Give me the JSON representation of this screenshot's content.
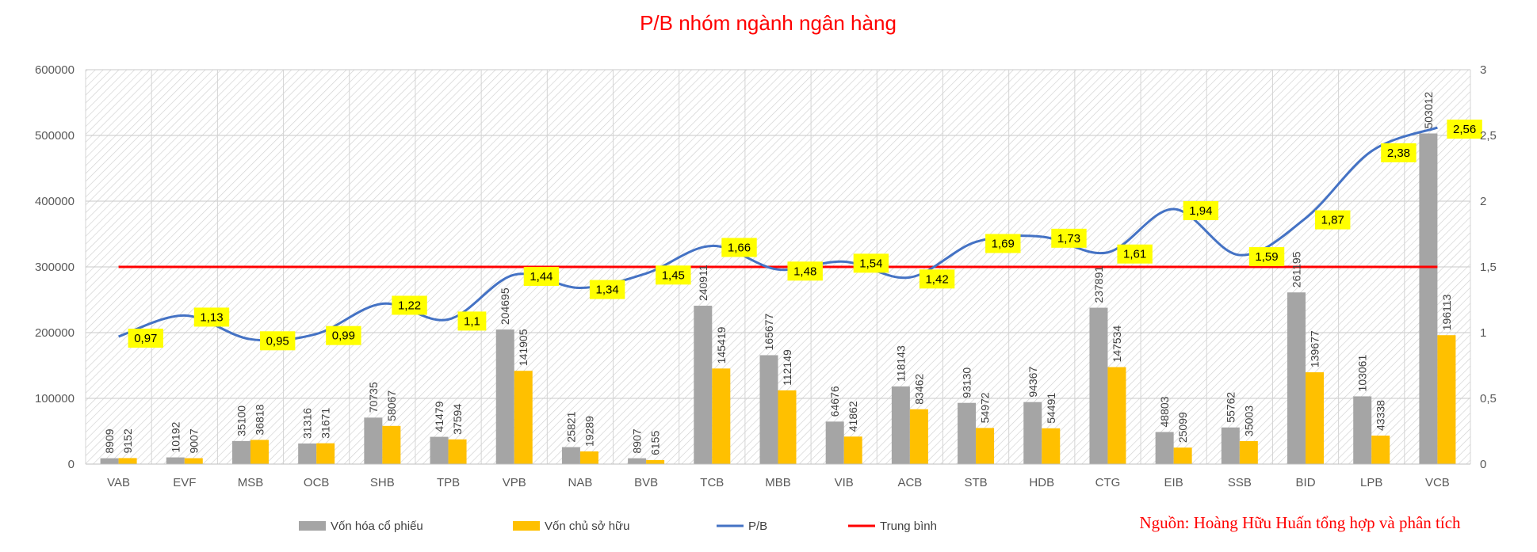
{
  "chart_data": {
    "type": "bar",
    "title": "P/B nhóm ngành ngân hàng",
    "source_note": "Nguồn: Hoàng Hữu Huấn tổng hợp và phân tích",
    "categories": [
      "VAB",
      "EVF",
      "MSB",
      "OCB",
      "SHB",
      "TPB",
      "VPB",
      "NAB",
      "BVB",
      "TCB",
      "MBB",
      "VIB",
      "ACB",
      "STB",
      "HDB",
      "CTG",
      "EIB",
      "SSB",
      "BID",
      "LPB",
      "VCB"
    ],
    "series": [
      {
        "name": "Vốn hóa cổ phiếu",
        "type": "bar",
        "axis": "left",
        "values": [
          8909,
          10192,
          35100,
          31316,
          70735,
          41479,
          204695,
          25821,
          8907,
          240911,
          165677,
          64676,
          118143,
          93130,
          94367,
          237891,
          48803,
          55762,
          261195,
          103061,
          503012
        ]
      },
      {
        "name": "Vốn chủ sở hữu",
        "type": "bar",
        "axis": "left",
        "values": [
          9152,
          9007,
          36818,
          31671,
          58067,
          37594,
          141905,
          19289,
          6155,
          145419,
          112149,
          41862,
          83462,
          54972,
          54491,
          147534,
          25099,
          35003,
          139677,
          43338,
          196113
        ]
      },
      {
        "name": "P/B",
        "type": "line",
        "axis": "right",
        "values": [
          0.97,
          1.13,
          0.95,
          0.99,
          1.22,
          1.1,
          1.44,
          1.34,
          1.45,
          1.66,
          1.48,
          1.54,
          1.42,
          1.69,
          1.73,
          1.61,
          1.94,
          1.59,
          1.87,
          2.38,
          2.56
        ],
        "labels": [
          "0,97",
          "1,13",
          "0,95",
          "0,99",
          "1,22",
          "1,1",
          "1,44",
          "1,34",
          "1,45",
          "1,66",
          "1,48",
          "1,54",
          "1,42",
          "1,69",
          "1,73",
          "1,61",
          "1,94",
          "1,59",
          "1,87",
          "2,38",
          "2,56"
        ]
      },
      {
        "name": "Trung bình",
        "type": "line",
        "axis": "right",
        "value": 1.5
      }
    ],
    "ylim_left": [
      0,
      600000
    ],
    "yticks_left": [
      "0",
      "100000",
      "200000",
      "300000",
      "400000",
      "500000",
      "600000"
    ],
    "ylim_right": [
      0,
      3
    ],
    "yticks_right": [
      "0",
      "0,5",
      "1",
      "1,5",
      "2",
      "2,5",
      "3"
    ],
    "grid": true,
    "legend_position": "bottom",
    "colors": {
      "market_cap": "#A5A5A5",
      "equity": "#FFC000",
      "pb_line": "#4472C4",
      "average_line": "#FF0000",
      "label_box": "#FFFF00",
      "title": "#FF0000",
      "source": "#FF0000"
    }
  }
}
